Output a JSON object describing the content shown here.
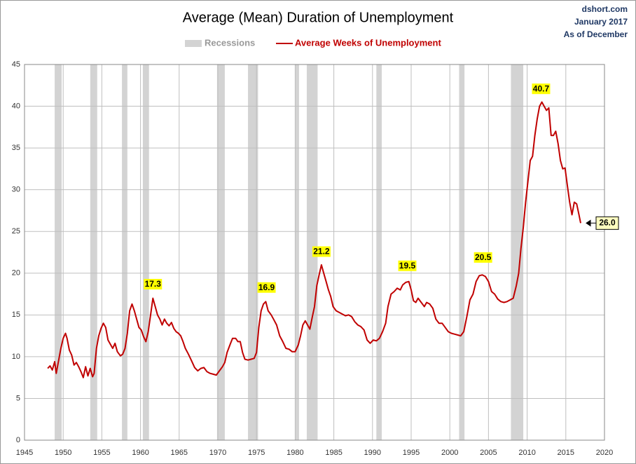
{
  "chart_data": {
    "type": "line",
    "title": "Average (Mean) Duration of Unemployment",
    "source": "dshort.com",
    "date": "January 2017",
    "note": "As of December",
    "recession_name": "Recessions",
    "recession_color": "#d3d3d3",
    "recessions": [
      [
        1948.9,
        1949.8
      ],
      [
        1953.5,
        1954.4
      ],
      [
        1957.6,
        1958.3
      ],
      [
        1960.3,
        1961.1
      ],
      [
        1969.9,
        1970.9
      ],
      [
        1973.9,
        1975.2
      ],
      [
        1980.0,
        1980.5
      ],
      [
        1981.5,
        1982.9
      ],
      [
        1990.5,
        1991.2
      ],
      [
        2001.2,
        2001.9
      ],
      [
        2007.9,
        2009.5
      ]
    ],
    "xlim": [
      1945,
      2020
    ],
    "xticks": [
      1945,
      1950,
      1955,
      1960,
      1965,
      1970,
      1975,
      1980,
      1985,
      1990,
      1995,
      2000,
      2005,
      2010,
      2015,
      2020
    ],
    "ylim": [
      0,
      45
    ],
    "yticks": [
      0,
      5,
      10,
      15,
      20,
      25,
      30,
      35,
      40,
      45
    ],
    "grid": true,
    "annotations": [
      {
        "x": 1961.6,
        "value": 17.3,
        "label": "17.3"
      },
      {
        "x": 1976.3,
        "value": 16.9,
        "label": "16.9"
      },
      {
        "x": 1983.4,
        "value": 21.2,
        "label": "21.2"
      },
      {
        "x": 1994.5,
        "value": 19.5,
        "label": "19.5"
      },
      {
        "x": 2004.3,
        "value": 20.5,
        "label": "20.5"
      },
      {
        "x": 2011.8,
        "value": 40.7,
        "label": "40.7"
      },
      {
        "x": 2016.92,
        "value": 26.0,
        "label": "26.0"
      }
    ],
    "series": [
      {
        "name": "Average Weeks of Unemployment",
        "color": "#c00000",
        "x": [
          1948.0,
          1948.3,
          1948.6,
          1948.9,
          1949.1,
          1949.4,
          1949.7,
          1950.0,
          1950.3,
          1950.5,
          1950.8,
          1951.1,
          1951.4,
          1951.7,
          1952.0,
          1952.3,
          1952.6,
          1952.9,
          1953.2,
          1953.5,
          1953.8,
          1954.0,
          1954.3,
          1954.6,
          1954.9,
          1955.2,
          1955.5,
          1955.8,
          1956.1,
          1956.4,
          1956.7,
          1957.0,
          1957.4,
          1957.7,
          1958.0,
          1958.3,
          1958.6,
          1958.9,
          1959.2,
          1959.5,
          1959.8,
          1960.1,
          1960.4,
          1960.7,
          1961.0,
          1961.3,
          1961.6,
          1961.9,
          1962.2,
          1962.5,
          1962.8,
          1963.1,
          1963.4,
          1963.7,
          1964.0,
          1964.3,
          1964.6,
          1964.9,
          1965.2,
          1965.5,
          1965.8,
          1966.2,
          1966.6,
          1967.0,
          1967.4,
          1967.8,
          1968.2,
          1968.6,
          1969.0,
          1969.4,
          1969.8,
          1970.2,
          1970.6,
          1970.9,
          1971.2,
          1971.6,
          1971.9,
          1972.3,
          1972.6,
          1972.9,
          1973.2,
          1973.5,
          1973.9,
          1974.3,
          1974.7,
          1975.0,
          1975.3,
          1975.6,
          1975.9,
          1976.2,
          1976.5,
          1976.9,
          1977.2,
          1977.6,
          1978.0,
          1978.4,
          1978.8,
          1979.2,
          1979.6,
          1980.0,
          1980.4,
          1980.7,
          1981.0,
          1981.3,
          1981.6,
          1981.9,
          1982.2,
          1982.5,
          1982.8,
          1983.1,
          1983.4,
          1983.7,
          1984.0,
          1984.3,
          1984.6,
          1984.9,
          1985.3,
          1985.7,
          1986.1,
          1986.5,
          1986.9,
          1987.3,
          1987.7,
          1988.1,
          1988.5,
          1988.9,
          1989.3,
          1989.7,
          1990.1,
          1990.5,
          1990.9,
          1991.3,
          1991.7,
          1992.0,
          1992.4,
          1992.8,
          1993.2,
          1993.6,
          1993.9,
          1994.3,
          1994.7,
          1995.0,
          1995.3,
          1995.6,
          1995.9,
          1996.3,
          1996.7,
          1997.0,
          1997.4,
          1997.8,
          1998.2,
          1998.6,
          1999.0,
          1999.4,
          1999.8,
          2000.2,
          2000.6,
          2001.0,
          2001.4,
          2001.8,
          2002.2,
          2002.6,
          2003.0,
          2003.4,
          2003.8,
          2004.2,
          2004.6,
          2005.0,
          2005.4,
          2005.8,
          2006.2,
          2006.6,
          2007.0,
          2007.4,
          2007.8,
          2008.2,
          2008.6,
          2008.9,
          2009.2,
          2009.5,
          2009.8,
          2010.1,
          2010.4,
          2010.7,
          2011.0,
          2011.3,
          2011.6,
          2011.9,
          2012.2,
          2012.5,
          2012.8,
          2013.1,
          2013.4,
          2013.7,
          2014.0,
          2014.3,
          2014.6,
          2014.9,
          2015.2,
          2015.5,
          2015.8,
          2016.1,
          2016.4,
          2016.7,
          2016.92
        ],
        "values": [
          8.6,
          8.9,
          8.4,
          9.4,
          8.0,
          9.5,
          11.0,
          12.2,
          12.8,
          12.2,
          10.8,
          10.2,
          9.0,
          9.3,
          8.8,
          8.2,
          7.5,
          8.8,
          7.7,
          8.6,
          7.6,
          8.0,
          11.0,
          12.5,
          13.4,
          14.0,
          13.5,
          12.0,
          11.5,
          11.0,
          11.6,
          10.6,
          10.1,
          10.3,
          11.0,
          12.8,
          15.5,
          16.3,
          15.5,
          14.5,
          13.5,
          13.2,
          12.4,
          11.8,
          13.0,
          15.0,
          17.0,
          16.0,
          15.0,
          14.5,
          13.8,
          14.5,
          14.0,
          13.7,
          14.1,
          13.4,
          13.0,
          12.8,
          12.5,
          11.8,
          11.0,
          10.3,
          9.5,
          8.7,
          8.3,
          8.6,
          8.7,
          8.2,
          8.0,
          7.9,
          7.8,
          8.3,
          8.8,
          9.3,
          10.5,
          11.5,
          12.2,
          12.2,
          11.8,
          11.8,
          10.5,
          9.7,
          9.6,
          9.7,
          9.8,
          10.5,
          13.5,
          15.5,
          16.3,
          16.6,
          15.5,
          15.0,
          14.5,
          13.8,
          12.5,
          11.8,
          11.0,
          10.9,
          10.6,
          10.6,
          11.4,
          12.5,
          13.8,
          14.3,
          13.8,
          13.3,
          14.7,
          16.0,
          18.5,
          19.8,
          21.0,
          20.0,
          19.0,
          18.0,
          17.2,
          16.0,
          15.5,
          15.3,
          15.1,
          14.9,
          15.0,
          14.8,
          14.2,
          13.8,
          13.6,
          13.2,
          12.0,
          11.6,
          12.0,
          11.9,
          12.2,
          13.0,
          14.0,
          16.0,
          17.5,
          17.8,
          18.2,
          18.0,
          18.6,
          18.9,
          19.0,
          18.0,
          16.7,
          16.5,
          17.0,
          16.5,
          16.0,
          16.5,
          16.3,
          15.8,
          14.5,
          14.0,
          14.0,
          13.5,
          13.0,
          12.8,
          12.7,
          12.6,
          12.5,
          13.0,
          14.8,
          16.8,
          17.5,
          19.0,
          19.7,
          19.8,
          19.6,
          19.0,
          17.8,
          17.5,
          16.9,
          16.6,
          16.5,
          16.6,
          16.8,
          17.0,
          18.5,
          20.0,
          23.0,
          25.5,
          28.5,
          31.0,
          33.5,
          34.0,
          36.5,
          38.5,
          40.0,
          40.5,
          40.0,
          39.5,
          39.8,
          36.5,
          36.5,
          37.0,
          35.5,
          33.5,
          32.5,
          32.6,
          30.5,
          28.5,
          27.0,
          28.5,
          28.3,
          27.0,
          26.0
        ]
      }
    ]
  }
}
